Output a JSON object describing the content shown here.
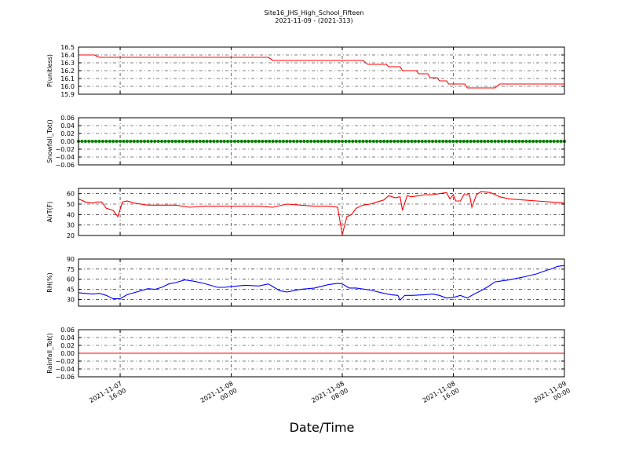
{
  "title": {
    "line1": "Site16_JHS_High_School_Fifteen",
    "line2": "2021-11-09 - (2021-313)"
  },
  "xlabel": "Date/Time",
  "colors": {
    "red": "#ff0000",
    "blue": "#0000ff",
    "green": "#008000",
    "grid": "#000000"
  },
  "chart_data": {
    "type": "line",
    "x_range": [
      "2021-11-07 13:00",
      "2021-11-09 00:00"
    ],
    "x_ticks": [
      {
        "t": "2021-11-07 16:00",
        "l1": "2021-11-07",
        "l2": "16:00"
      },
      {
        "t": "2021-11-08 00:00",
        "l1": "2021-11-08",
        "l2": "00:00"
      },
      {
        "t": "2021-11-08 08:00",
        "l1": "2021-11-08",
        "l2": "08:00"
      },
      {
        "t": "2021-11-08 16:00",
        "l1": "2021-11-08",
        "l2": "16:00"
      },
      {
        "t": "2021-11-09 00:00",
        "l1": "2021-11-09",
        "l2": "00:00"
      }
    ],
    "panels": [
      {
        "ylabel": "P(unitless)",
        "color": "red",
        "markers": false,
        "ylim": [
          15.9,
          16.5
        ],
        "yticks": [
          "16.5",
          "16.4",
          "16.3",
          "16.2",
          "16.1",
          "16.0",
          "15.9"
        ],
        "points": [
          [
            "2021-11-07 13:00",
            16.4
          ],
          [
            "2021-11-07 14:10",
            16.4
          ],
          [
            "2021-11-07 14:20",
            16.38
          ],
          [
            "2021-11-07 14:30",
            16.37
          ],
          [
            "2021-11-08 02:40",
            16.37
          ],
          [
            "2021-11-08 02:50",
            16.35
          ],
          [
            "2021-11-08 03:00",
            16.33
          ],
          [
            "2021-11-08 09:30",
            16.33
          ],
          [
            "2021-11-08 09:50",
            16.28
          ],
          [
            "2021-11-08 11:10",
            16.28
          ],
          [
            "2021-11-08 11:20",
            16.25
          ],
          [
            "2021-11-08 12:10",
            16.25
          ],
          [
            "2021-11-08 12:20",
            16.2
          ],
          [
            "2021-11-08 13:20",
            16.2
          ],
          [
            "2021-11-08 13:30",
            16.16
          ],
          [
            "2021-11-08 14:10",
            16.16
          ],
          [
            "2021-11-08 14:20",
            16.11
          ],
          [
            "2021-11-08 14:50",
            16.11
          ],
          [
            "2021-11-08 15:00",
            16.07
          ],
          [
            "2021-11-08 15:30",
            16.07
          ],
          [
            "2021-11-08 15:40",
            16.03
          ],
          [
            "2021-11-08 16:50",
            16.03
          ],
          [
            "2021-11-08 17:00",
            15.98
          ],
          [
            "2021-11-08 19:00",
            15.98
          ],
          [
            "2021-11-08 19:20",
            16.03
          ],
          [
            "2021-11-09 00:00",
            16.03
          ]
        ]
      },
      {
        "ylabel": "Snowfall_Tot()",
        "color": "red",
        "markers": true,
        "marker_color": "green",
        "ylim": [
          -0.06,
          0.06
        ],
        "yticks": [
          "0.06",
          "0.04",
          "0.02",
          "0.00",
          "−0.02",
          "−0.04",
          "−0.06"
        ],
        "constant": 0,
        "marker_step_minutes": 15
      },
      {
        "ylabel": "AirT(F)",
        "color": "red",
        "markers": false,
        "ylim": [
          20,
          65
        ],
        "yticks": [
          "60",
          "50",
          "40",
          "30",
          "20"
        ],
        "points": [
          [
            "2021-11-07 13:00",
            55
          ],
          [
            "2021-11-07 13:30",
            52
          ],
          [
            "2021-11-07 14:00",
            51
          ],
          [
            "2021-11-07 14:20",
            52
          ],
          [
            "2021-11-07 14:40",
            52
          ],
          [
            "2021-11-07 15:00",
            46
          ],
          [
            "2021-11-07 15:30",
            44
          ],
          [
            "2021-11-07 15:50",
            38
          ],
          [
            "2021-11-07 16:10",
            52
          ],
          [
            "2021-11-07 16:30",
            53
          ],
          [
            "2021-11-07 17:00",
            51
          ],
          [
            "2021-11-07 18:00",
            49
          ],
          [
            "2021-11-07 19:00",
            49
          ],
          [
            "2021-11-07 20:00",
            49
          ],
          [
            "2021-11-07 21:00",
            47
          ],
          [
            "2021-11-07 22:00",
            48
          ],
          [
            "2021-11-08 00:00",
            48
          ],
          [
            "2021-11-08 02:00",
            48
          ],
          [
            "2021-11-08 03:00",
            47
          ],
          [
            "2021-11-08 04:00",
            50
          ],
          [
            "2021-11-08 05:00",
            49
          ],
          [
            "2021-11-08 06:00",
            48
          ],
          [
            "2021-11-08 07:00",
            48
          ],
          [
            "2021-11-08 07:40",
            47
          ],
          [
            "2021-11-08 08:00",
            21
          ],
          [
            "2021-11-08 08:20",
            38
          ],
          [
            "2021-11-08 08:40",
            40
          ],
          [
            "2021-11-08 09:00",
            46
          ],
          [
            "2021-11-08 09:30",
            49
          ],
          [
            "2021-11-08 10:00",
            50
          ],
          [
            "2021-11-08 10:30",
            52
          ],
          [
            "2021-11-08 11:00",
            54
          ],
          [
            "2021-11-08 11:20",
            58
          ],
          [
            "2021-11-08 11:50",
            56
          ],
          [
            "2021-11-08 12:10",
            57
          ],
          [
            "2021-11-08 12:20",
            44
          ],
          [
            "2021-11-08 12:40",
            58
          ],
          [
            "2021-11-08 13:00",
            57
          ],
          [
            "2021-11-08 13:30",
            58
          ],
          [
            "2021-11-08 14:00",
            59
          ],
          [
            "2021-11-08 14:30",
            59
          ],
          [
            "2021-11-08 15:00",
            60
          ],
          [
            "2021-11-08 15:30",
            61
          ],
          [
            "2021-11-08 15:45",
            55
          ],
          [
            "2021-11-08 16:00",
            59
          ],
          [
            "2021-11-08 16:10",
            53
          ],
          [
            "2021-11-08 16:30",
            53
          ],
          [
            "2021-11-08 16:45",
            59
          ],
          [
            "2021-11-08 17:10",
            59
          ],
          [
            "2021-11-08 17:20",
            47
          ],
          [
            "2021-11-08 17:40",
            59
          ],
          [
            "2021-11-08 18:00",
            62
          ],
          [
            "2021-11-08 18:40",
            61
          ],
          [
            "2021-11-08 19:20",
            57
          ],
          [
            "2021-11-08 20:00",
            55
          ],
          [
            "2021-11-08 21:00",
            54
          ],
          [
            "2021-11-08 22:00",
            53
          ],
          [
            "2021-11-08 23:00",
            52
          ],
          [
            "2021-11-09 00:00",
            51
          ]
        ]
      },
      {
        "ylabel": "RH(%)",
        "color": "blue",
        "markers": false,
        "ylim": [
          20,
          90
        ],
        "yticks": [
          "90",
          "75",
          "60",
          "45",
          "30"
        ],
        "points": [
          [
            "2021-11-07 13:00",
            40
          ],
          [
            "2021-11-07 14:00",
            38
          ],
          [
            "2021-11-07 14:30",
            39
          ],
          [
            "2021-11-07 15:00",
            36
          ],
          [
            "2021-11-07 15:30",
            31
          ],
          [
            "2021-11-07 16:00",
            31
          ],
          [
            "2021-11-07 16:30",
            37
          ],
          [
            "2021-11-07 17:00",
            40
          ],
          [
            "2021-11-07 17:30",
            43
          ],
          [
            "2021-11-07 18:00",
            46
          ],
          [
            "2021-11-07 18:30",
            45
          ],
          [
            "2021-11-07 19:00",
            48
          ],
          [
            "2021-11-07 19:30",
            53
          ],
          [
            "2021-11-07 20:00",
            55
          ],
          [
            "2021-11-07 20:40",
            59
          ],
          [
            "2021-11-07 21:20",
            57
          ],
          [
            "2021-11-07 22:00",
            54
          ],
          [
            "2021-11-07 22:30",
            51
          ],
          [
            "2021-11-07 23:00",
            48
          ],
          [
            "2021-11-07 23:30",
            48
          ],
          [
            "2021-11-08 00:00",
            49
          ],
          [
            "2021-11-08 01:00",
            51
          ],
          [
            "2021-11-08 02:00",
            50
          ],
          [
            "2021-11-08 02:40",
            53
          ],
          [
            "2021-11-08 03:00",
            49
          ],
          [
            "2021-11-08 03:30",
            43
          ],
          [
            "2021-11-08 04:00",
            41
          ],
          [
            "2021-11-08 04:30",
            43
          ],
          [
            "2021-11-08 05:00",
            45
          ],
          [
            "2021-11-08 06:00",
            47
          ],
          [
            "2021-11-08 07:00",
            52
          ],
          [
            "2021-11-08 07:40",
            54
          ],
          [
            "2021-11-08 08:00",
            53
          ],
          [
            "2021-11-08 08:30",
            47
          ],
          [
            "2021-11-08 09:00",
            47
          ],
          [
            "2021-11-08 10:00",
            44
          ],
          [
            "2021-11-08 11:00",
            39
          ],
          [
            "2021-11-08 11:30",
            37
          ],
          [
            "2021-11-08 12:00",
            36
          ],
          [
            "2021-11-08 12:10",
            29
          ],
          [
            "2021-11-08 12:30",
            36
          ],
          [
            "2021-11-08 13:00",
            36
          ],
          [
            "2021-11-08 14:00",
            37
          ],
          [
            "2021-11-08 14:30",
            38
          ],
          [
            "2021-11-08 15:00",
            36
          ],
          [
            "2021-11-08 15:30",
            32
          ],
          [
            "2021-11-08 16:00",
            33
          ],
          [
            "2021-11-08 16:30",
            36
          ],
          [
            "2021-11-08 17:00",
            32
          ],
          [
            "2021-11-08 17:30",
            38
          ],
          [
            "2021-11-08 18:00",
            43
          ],
          [
            "2021-11-08 18:30",
            49
          ],
          [
            "2021-11-08 19:00",
            56
          ],
          [
            "2021-11-08 20:00",
            59
          ],
          [
            "2021-11-08 21:00",
            63
          ],
          [
            "2021-11-08 22:00",
            68
          ],
          [
            "2021-11-08 22:40",
            73
          ],
          [
            "2021-11-08 23:00",
            75
          ],
          [
            "2021-11-08 23:30",
            79
          ],
          [
            "2021-11-08 23:50",
            80
          ],
          [
            "2021-11-09 00:00",
            80
          ]
        ]
      },
      {
        "ylabel": "Rainfall_Tot()",
        "color": "red",
        "markers": false,
        "ylim": [
          -0.06,
          0.06
        ],
        "yticks": [
          "0.06",
          "0.04",
          "0.02",
          "0.00",
          "−0.02",
          "−0.04",
          "−0.06"
        ],
        "constant": 0
      }
    ]
  }
}
